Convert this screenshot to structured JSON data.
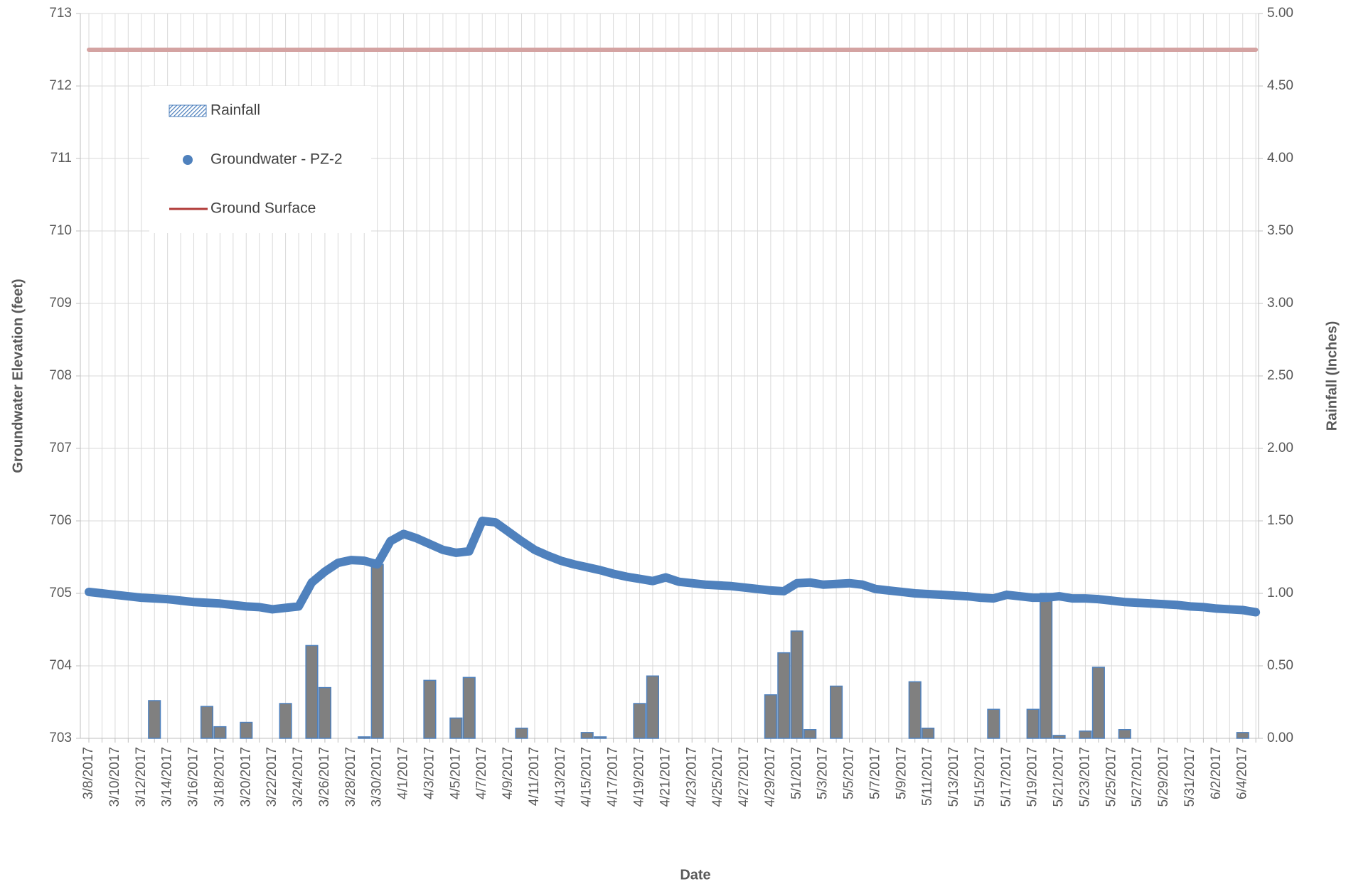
{
  "chart_data": {
    "type": "combo",
    "x_label": "Date",
    "y_label": "Groundwater Elevation (feet)",
    "y2_label": "Rainfall (Inches)",
    "categories": [
      "3/8/2017",
      null,
      "3/10/2017",
      null,
      "3/12/2017",
      null,
      "3/14/2017",
      null,
      "3/16/2017",
      null,
      "3/18/2017",
      null,
      "3/20/2017",
      null,
      "3/22/2017",
      null,
      "3/24/2017",
      null,
      "3/26/2017",
      null,
      "3/28/2017",
      null,
      "3/30/2017",
      null,
      "4/1/2017",
      null,
      "4/3/2017",
      null,
      "4/5/2017",
      null,
      "4/7/2017",
      null,
      "4/9/2017",
      null,
      "4/11/2017",
      null,
      "4/13/2017",
      null,
      "4/15/2017",
      null,
      "4/17/2017",
      null,
      "4/19/2017",
      null,
      "4/21/2017",
      null,
      "4/23/2017",
      null,
      "4/25/2017",
      null,
      "4/27/2017",
      null,
      "4/29/2017",
      null,
      "5/1/2017",
      null,
      "5/3/2017",
      null,
      "5/5/2017",
      null,
      "5/7/2017",
      null,
      "5/9/2017",
      null,
      "5/11/2017",
      null,
      "5/13/2017",
      null,
      "5/15/2017",
      null,
      "5/17/2017",
      null,
      "5/19/2017",
      null,
      "5/21/2017",
      null,
      "5/23/2017",
      null,
      "5/25/2017",
      null,
      "5/27/2017",
      null,
      "5/29/2017",
      null,
      "5/31/2017",
      null,
      "6/2/2017",
      null,
      "6/4/2017",
      null
    ],
    "series": [
      {
        "name": "Rainfall",
        "type": "bar",
        "axis": "y2",
        "color": "#808080",
        "edge_color": "#4f81bd",
        "values": [
          0,
          0,
          0,
          0,
          0,
          0.26,
          0,
          0,
          0,
          0.22,
          0.08,
          0,
          0.11,
          0,
          0,
          0.24,
          0,
          0.64,
          0.35,
          0,
          0,
          0.01,
          1.2,
          0,
          0,
          0,
          0.4,
          0,
          0.14,
          0.42,
          0,
          0,
          0,
          0.07,
          0,
          0,
          0,
          0,
          0.04,
          0.01,
          0,
          0,
          0.24,
          0.43,
          0,
          0,
          0,
          0,
          0,
          0,
          0,
          0,
          0.3,
          0.59,
          0.74,
          0.06,
          0,
          0.36,
          0,
          0,
          0,
          0,
          0,
          0.39,
          0.07,
          0,
          0,
          0,
          0,
          0.2,
          0,
          0,
          0.2,
          1.0,
          0.02,
          0,
          0.05,
          0.49,
          0,
          0.06,
          0,
          0,
          0,
          0,
          0,
          0,
          0,
          0,
          0.04,
          0
        ]
      },
      {
        "name": "Groundwater - PZ-2",
        "type": "line",
        "axis": "y",
        "color": "#4f81bd",
        "values": [
          705.02,
          705.0,
          704.98,
          704.96,
          704.94,
          704.93,
          704.92,
          704.9,
          704.88,
          704.87,
          704.86,
          704.84,
          704.82,
          704.81,
          704.78,
          704.8,
          704.82,
          705.15,
          705.3,
          705.42,
          705.46,
          705.45,
          705.4,
          705.72,
          705.82,
          705.76,
          705.68,
          705.6,
          705.56,
          705.58,
          706.0,
          705.98,
          705.85,
          705.72,
          705.6,
          705.52,
          705.45,
          705.4,
          705.36,
          705.32,
          705.27,
          705.23,
          705.2,
          705.17,
          705.22,
          705.16,
          705.14,
          705.12,
          705.11,
          705.1,
          705.08,
          705.06,
          705.04,
          705.03,
          705.14,
          705.15,
          705.12,
          705.13,
          705.14,
          705.12,
          705.06,
          705.04,
          705.02,
          705.0,
          704.99,
          704.98,
          704.97,
          704.96,
          704.94,
          704.93,
          704.98,
          704.96,
          704.94,
          704.94,
          704.96,
          704.93,
          704.93,
          704.92,
          704.9,
          704.88,
          704.87,
          704.86,
          704.85,
          704.84,
          704.82,
          704.81,
          704.79,
          704.78,
          704.77,
          704.74
        ]
      },
      {
        "name": "Ground Surface",
        "type": "line",
        "axis": "y",
        "color": "#d4a3a2",
        "legend_color": "#b03a37",
        "values": [
          712.5,
          712.5,
          712.5,
          712.5,
          712.5,
          712.5,
          712.5,
          712.5,
          712.5,
          712.5,
          712.5,
          712.5,
          712.5,
          712.5,
          712.5,
          712.5,
          712.5,
          712.5,
          712.5,
          712.5,
          712.5,
          712.5,
          712.5,
          712.5,
          712.5,
          712.5,
          712.5,
          712.5,
          712.5,
          712.5,
          712.5,
          712.5,
          712.5,
          712.5,
          712.5,
          712.5,
          712.5,
          712.5,
          712.5,
          712.5,
          712.5,
          712.5,
          712.5,
          712.5,
          712.5,
          712.5,
          712.5,
          712.5,
          712.5,
          712.5,
          712.5,
          712.5,
          712.5,
          712.5,
          712.5,
          712.5,
          712.5,
          712.5,
          712.5,
          712.5,
          712.5,
          712.5,
          712.5,
          712.5,
          712.5,
          712.5,
          712.5,
          712.5,
          712.5,
          712.5,
          712.5,
          712.5,
          712.5,
          712.5,
          712.5,
          712.5,
          712.5,
          712.5,
          712.5,
          712.5,
          712.5,
          712.5,
          712.5,
          712.5,
          712.5,
          712.5,
          712.5,
          712.5,
          712.5,
          712.5
        ]
      }
    ],
    "ylim": [
      703,
      713
    ],
    "yticks": [
      703,
      704,
      705,
      706,
      707,
      708,
      709,
      710,
      711,
      712,
      713
    ],
    "y2lim": [
      0,
      5
    ],
    "y2ticks": [
      {
        "value": 0,
        "label": "0.00"
      },
      {
        "value": 0.5,
        "label": "0.50"
      },
      {
        "value": 1,
        "label": "1.00"
      },
      {
        "value": 1.5,
        "label": "1.50"
      },
      {
        "value": 2,
        "label": "2.00"
      },
      {
        "value": 2.5,
        "label": "2.50"
      },
      {
        "value": 3,
        "label": "3.00"
      },
      {
        "value": 3.5,
        "label": "3.50"
      },
      {
        "value": 4,
        "label": "4.00"
      },
      {
        "value": 4.5,
        "label": "4.50"
      },
      {
        "value": 5,
        "label": "5.00"
      }
    ],
    "grid": true,
    "legend": "upper left"
  }
}
